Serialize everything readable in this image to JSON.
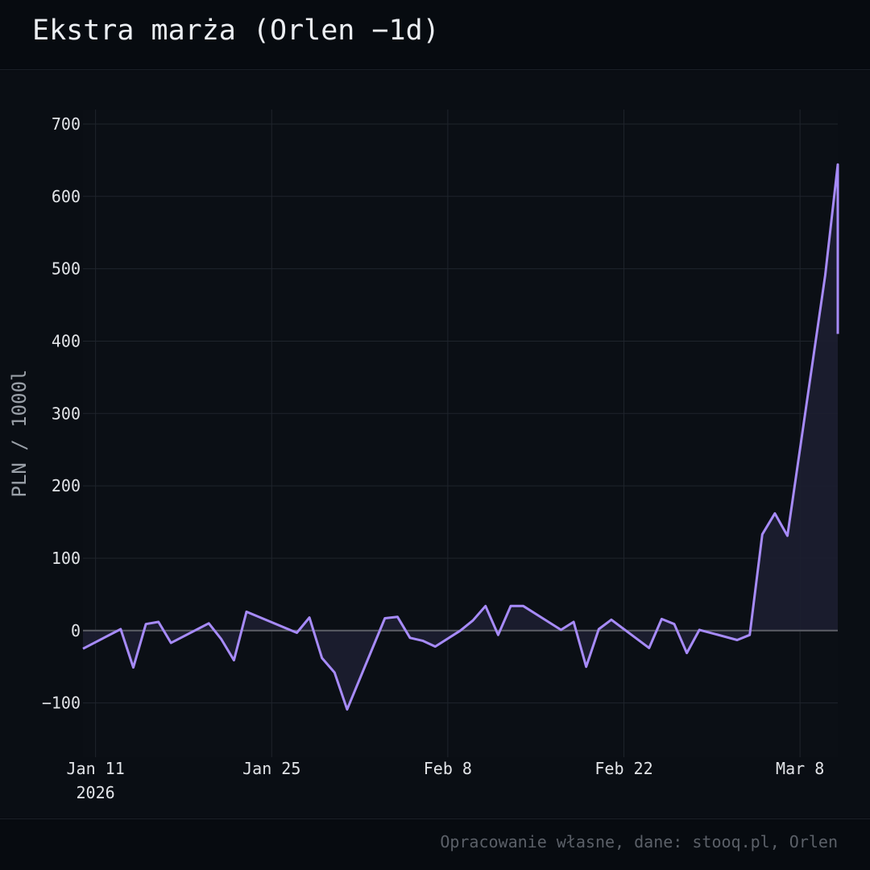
{
  "title": "Ekstra marża (Orlen −1d)",
  "source_note": "Opracowanie własne, dane: stooq.pl, Orlen",
  "colors": {
    "line": "#a78bfa",
    "fill": "#1c1e30",
    "zero_line": "#5c5f66",
    "grid": "#1f242c",
    "tick_text": "#e2e4e8",
    "axis_title": "#9aa0a8"
  },
  "chart_data": {
    "type": "area",
    "ylabel": "PLN / 1000l",
    "ylim": [
      -175,
      720
    ],
    "yticks": [
      -100,
      0,
      100,
      200,
      300,
      400,
      500,
      600,
      700
    ],
    "ytick_labels": [
      "−100",
      "0",
      "100",
      "200",
      "300",
      "400",
      "500",
      "600",
      "700"
    ],
    "xlim": [
      "2026-01-10",
      "2026-03-11"
    ],
    "xticks": [
      {
        "date": "2026-01-11",
        "label": "Jan 11",
        "sublabel": "2026"
      },
      {
        "date": "2026-01-25",
        "label": "Jan 25",
        "sublabel": ""
      },
      {
        "date": "2026-02-08",
        "label": "Feb 8",
        "sublabel": ""
      },
      {
        "date": "2026-02-22",
        "label": "Feb 22",
        "sublabel": ""
      },
      {
        "date": "2026-03-08",
        "label": "Mar 8",
        "sublabel": ""
      }
    ],
    "grid": true,
    "series": [
      {
        "points": [
          {
            "x": "2026-01-10",
            "y": -25
          },
          {
            "x": "2026-01-13",
            "y": 2
          },
          {
            "x": "2026-01-14",
            "y": -51
          },
          {
            "x": "2026-01-15",
            "y": 9
          },
          {
            "x": "2026-01-16",
            "y": 12
          },
          {
            "x": "2026-01-17",
            "y": -17
          },
          {
            "x": "2026-01-20",
            "y": 10
          },
          {
            "x": "2026-01-21",
            "y": -12
          },
          {
            "x": "2026-01-22",
            "y": -41
          },
          {
            "x": "2026-01-23",
            "y": 26
          },
          {
            "x": "2026-01-27",
            "y": -3
          },
          {
            "x": "2026-01-28",
            "y": 18
          },
          {
            "x": "2026-01-29",
            "y": -38
          },
          {
            "x": "2026-01-30",
            "y": -58
          },
          {
            "x": "2026-01-31",
            "y": -109
          },
          {
            "x": "2026-02-03",
            "y": 17
          },
          {
            "x": "2026-02-04",
            "y": 19
          },
          {
            "x": "2026-02-05",
            "y": -10
          },
          {
            "x": "2026-02-06",
            "y": -14
          },
          {
            "x": "2026-02-07",
            "y": -22
          },
          {
            "x": "2026-02-09",
            "y": 0
          },
          {
            "x": "2026-02-10",
            "y": 14
          },
          {
            "x": "2026-02-11",
            "y": 34
          },
          {
            "x": "2026-02-12",
            "y": -6
          },
          {
            "x": "2026-02-13",
            "y": 34
          },
          {
            "x": "2026-02-14",
            "y": 34
          },
          {
            "x": "2026-02-17",
            "y": 1
          },
          {
            "x": "2026-02-18",
            "y": 12
          },
          {
            "x": "2026-02-19",
            "y": -50
          },
          {
            "x": "2026-02-20",
            "y": 2
          },
          {
            "x": "2026-02-21",
            "y": 15
          },
          {
            "x": "2026-02-24",
            "y": -24
          },
          {
            "x": "2026-02-25",
            "y": 16
          },
          {
            "x": "2026-02-26",
            "y": 9
          },
          {
            "x": "2026-02-27",
            "y": -31
          },
          {
            "x": "2026-02-28",
            "y": 1
          },
          {
            "x": "2026-03-03",
            "y": -13
          },
          {
            "x": "2026-03-04",
            "y": -6
          },
          {
            "x": "2026-03-05",
            "y": 133
          },
          {
            "x": "2026-03-06",
            "y": 162
          },
          {
            "x": "2026-03-07",
            "y": 131
          },
          {
            "x": "2026-03-10",
            "y": 491
          },
          {
            "x": "2026-03-11",
            "y": 644
          },
          {
            "x": "2026-03-12",
            "y": 410
          }
        ]
      }
    ]
  }
}
